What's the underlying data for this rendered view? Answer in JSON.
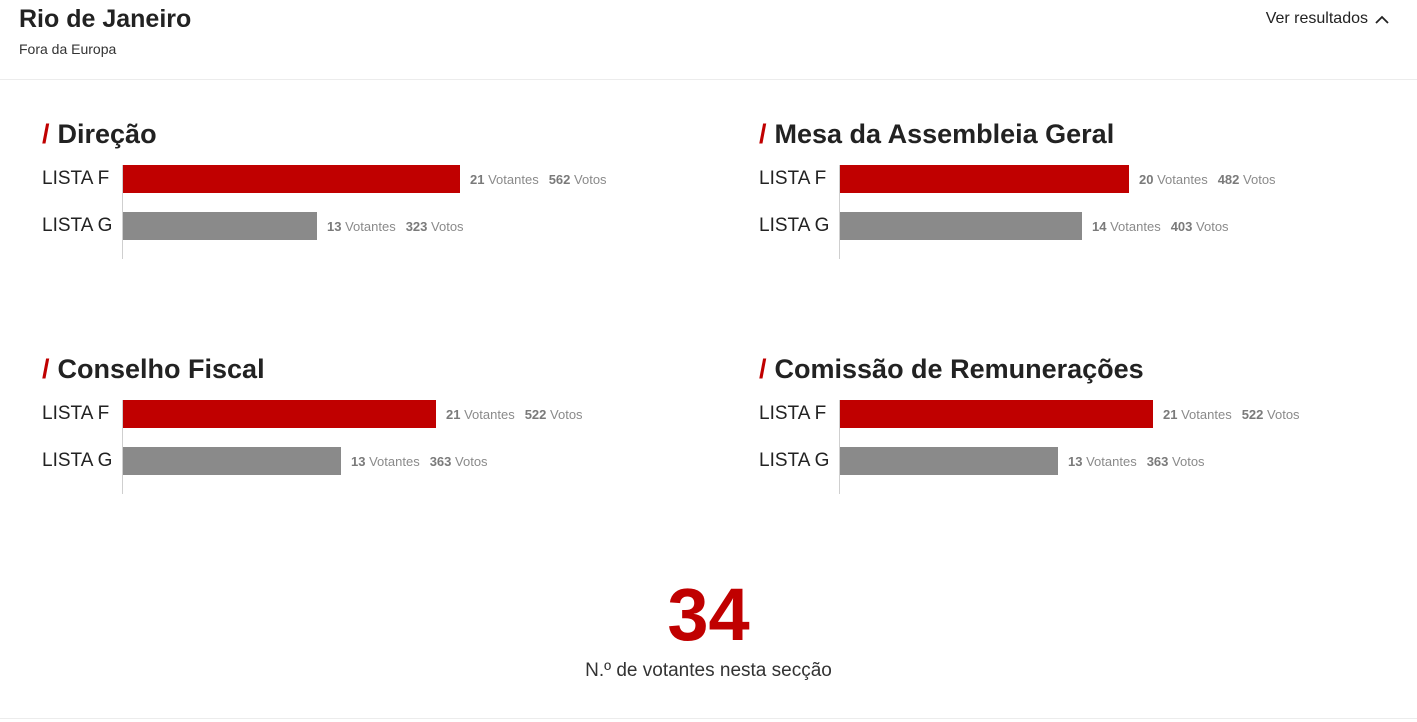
{
  "location": {
    "title": "Rio de Janeiro",
    "subtitle": "Fora da Europa"
  },
  "toggle": {
    "label": "Ver resultados",
    "icon": "chevron-up-icon"
  },
  "colors": {
    "accent": "#c00000",
    "lista_f": "#c00000",
    "lista_g": "#8a8a8a"
  },
  "units": {
    "votantes": "Votantes",
    "votos": "Votos"
  },
  "sections": [
    {
      "title": "Direção",
      "lists": [
        {
          "label": "LISTA F",
          "votantes": "21",
          "votos": "562"
        },
        {
          "label": "LISTA G",
          "votantes": "13",
          "votos": "323"
        }
      ]
    },
    {
      "title": "Mesa da Assembleia Geral",
      "lists": [
        {
          "label": "LISTA F",
          "votantes": "20",
          "votos": "482"
        },
        {
          "label": "LISTA G",
          "votantes": "14",
          "votos": "403"
        }
      ]
    },
    {
      "title": "Conselho Fiscal",
      "lists": [
        {
          "label": "LISTA F",
          "votantes": "21",
          "votos": "522"
        },
        {
          "label": "LISTA G",
          "votantes": "13",
          "votos": "363"
        }
      ]
    },
    {
      "title": "Comissão de Remunerações",
      "lists": [
        {
          "label": "LISTA F",
          "votantes": "21",
          "votos": "522"
        },
        {
          "label": "LISTA G",
          "votantes": "13",
          "votos": "363"
        }
      ]
    }
  ],
  "total": {
    "value": "34",
    "label": "N.º de votantes nesta secção"
  }
}
